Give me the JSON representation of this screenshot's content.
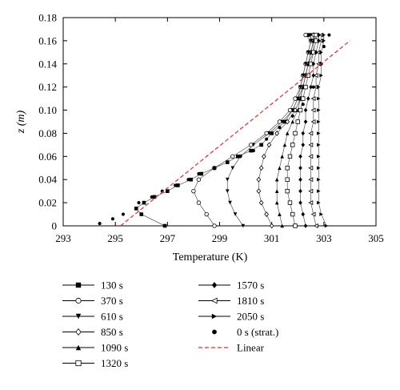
{
  "chart_data": {
    "type": "line",
    "xlabel": "Temperature (K)",
    "ylabel": "z (m)",
    "xlim": [
      293,
      305
    ],
    "ylim": [
      0,
      0.18
    ],
    "x_ticks": [
      "293",
      "295",
      "297",
      "299",
      "301",
      "303",
      "305"
    ],
    "y_ticks": [
      "0",
      "0.02",
      "0.04",
      "0.06",
      "0.08",
      "0.10",
      "0.12",
      "0.14",
      "0.16",
      "0.18"
    ],
    "grid": false,
    "legend_position": "bottom",
    "series": [
      {
        "name": "130 s",
        "marker": "square-filled",
        "points": [
          [
            296.9,
            0.0
          ],
          [
            296.0,
            0.01
          ],
          [
            295.8,
            0.015
          ],
          [
            296.1,
            0.02
          ],
          [
            296.5,
            0.025
          ],
          [
            297.0,
            0.03
          ],
          [
            297.4,
            0.035
          ],
          [
            297.9,
            0.04
          ],
          [
            298.3,
            0.045
          ],
          [
            298.8,
            0.05
          ],
          [
            299.3,
            0.055
          ],
          [
            299.7,
            0.06
          ],
          [
            300.2,
            0.065
          ],
          [
            300.6,
            0.07
          ],
          [
            301.0,
            0.08
          ],
          [
            301.5,
            0.09
          ],
          [
            301.8,
            0.1
          ],
          [
            302.0,
            0.11
          ],
          [
            302.2,
            0.12
          ],
          [
            302.3,
            0.13
          ],
          [
            302.4,
            0.14
          ],
          [
            302.6,
            0.15
          ],
          [
            302.6,
            0.16
          ],
          [
            302.4,
            0.165
          ]
        ]
      },
      {
        "name": "370 s",
        "marker": "circle-open",
        "points": [
          [
            298.8,
            0.0
          ],
          [
            298.5,
            0.01
          ],
          [
            298.2,
            0.02
          ],
          [
            298.0,
            0.03
          ],
          [
            298.2,
            0.04
          ],
          [
            298.8,
            0.05
          ],
          [
            299.5,
            0.06
          ],
          [
            300.2,
            0.07
          ],
          [
            300.8,
            0.08
          ],
          [
            301.3,
            0.09
          ],
          [
            301.7,
            0.1
          ],
          [
            301.9,
            0.11
          ],
          [
            302.1,
            0.12
          ],
          [
            302.2,
            0.13
          ],
          [
            302.3,
            0.14
          ],
          [
            302.4,
            0.15
          ],
          [
            302.5,
            0.16
          ],
          [
            302.3,
            0.165
          ]
        ]
      },
      {
        "name": "610 s",
        "marker": "triangle-down-filled",
        "points": [
          [
            299.9,
            0.0
          ],
          [
            299.6,
            0.01
          ],
          [
            299.4,
            0.02
          ],
          [
            299.3,
            0.03
          ],
          [
            299.3,
            0.04
          ],
          [
            299.5,
            0.05
          ],
          [
            299.8,
            0.06
          ],
          [
            300.3,
            0.07
          ],
          [
            300.9,
            0.08
          ],
          [
            301.4,
            0.09
          ],
          [
            301.8,
            0.1
          ],
          [
            302.0,
            0.11
          ],
          [
            302.1,
            0.12
          ],
          [
            302.2,
            0.13
          ],
          [
            302.3,
            0.14
          ],
          [
            302.4,
            0.15
          ],
          [
            302.5,
            0.16
          ],
          [
            302.5,
            0.165
          ]
        ]
      },
      {
        "name": "850 s",
        "marker": "diamond-open",
        "points": [
          [
            301.0,
            0.0
          ],
          [
            300.8,
            0.01
          ],
          [
            300.6,
            0.02
          ],
          [
            300.5,
            0.03
          ],
          [
            300.5,
            0.04
          ],
          [
            300.6,
            0.05
          ],
          [
            300.7,
            0.06
          ],
          [
            300.9,
            0.07
          ],
          [
            301.2,
            0.08
          ],
          [
            301.6,
            0.09
          ],
          [
            301.9,
            0.1
          ],
          [
            302.1,
            0.11
          ],
          [
            302.2,
            0.12
          ],
          [
            302.3,
            0.13
          ],
          [
            302.4,
            0.14
          ],
          [
            302.5,
            0.15
          ],
          [
            302.6,
            0.16
          ],
          [
            302.6,
            0.165
          ]
        ]
      },
      {
        "name": "1090 s",
        "marker": "triangle-up-filled",
        "points": [
          [
            301.4,
            0.0
          ],
          [
            301.3,
            0.01
          ],
          [
            301.2,
            0.02
          ],
          [
            301.2,
            0.03
          ],
          [
            301.2,
            0.04
          ],
          [
            301.3,
            0.05
          ],
          [
            301.4,
            0.06
          ],
          [
            301.5,
            0.07
          ],
          [
            301.6,
            0.08
          ],
          [
            301.8,
            0.09
          ],
          [
            302.0,
            0.1
          ],
          [
            302.1,
            0.11
          ],
          [
            302.2,
            0.12
          ],
          [
            302.3,
            0.13
          ],
          [
            302.4,
            0.14
          ],
          [
            302.5,
            0.15
          ],
          [
            302.6,
            0.16
          ],
          [
            302.7,
            0.165
          ]
        ]
      },
      {
        "name": "1320 s",
        "marker": "square-open",
        "points": [
          [
            301.9,
            0.0
          ],
          [
            301.8,
            0.01
          ],
          [
            301.7,
            0.02
          ],
          [
            301.6,
            0.03
          ],
          [
            301.6,
            0.04
          ],
          [
            301.6,
            0.05
          ],
          [
            301.7,
            0.06
          ],
          [
            301.8,
            0.07
          ],
          [
            301.9,
            0.08
          ],
          [
            302.0,
            0.09
          ],
          [
            302.1,
            0.1
          ],
          [
            302.2,
            0.11
          ],
          [
            302.3,
            0.12
          ],
          [
            302.4,
            0.13
          ],
          [
            302.5,
            0.14
          ],
          [
            302.6,
            0.15
          ],
          [
            302.7,
            0.16
          ],
          [
            302.7,
            0.165
          ]
        ]
      },
      {
        "name": "1570 s",
        "marker": "diamond-filled",
        "points": [
          [
            302.3,
            0.0
          ],
          [
            302.2,
            0.01
          ],
          [
            302.1,
            0.02
          ],
          [
            302.1,
            0.03
          ],
          [
            302.1,
            0.04
          ],
          [
            302.1,
            0.05
          ],
          [
            302.1,
            0.06
          ],
          [
            302.2,
            0.07
          ],
          [
            302.2,
            0.08
          ],
          [
            302.3,
            0.09
          ],
          [
            302.3,
            0.1
          ],
          [
            302.4,
            0.11
          ],
          [
            302.5,
            0.12
          ],
          [
            302.6,
            0.13
          ],
          [
            302.6,
            0.14
          ],
          [
            302.7,
            0.15
          ],
          [
            302.8,
            0.16
          ],
          [
            302.8,
            0.165
          ]
        ]
      },
      {
        "name": "1810 s",
        "marker": "triangle-left-open",
        "points": [
          [
            302.7,
            0.0
          ],
          [
            302.6,
            0.01
          ],
          [
            302.5,
            0.02
          ],
          [
            302.5,
            0.03
          ],
          [
            302.5,
            0.04
          ],
          [
            302.5,
            0.05
          ],
          [
            302.5,
            0.06
          ],
          [
            302.5,
            0.07
          ],
          [
            302.5,
            0.08
          ],
          [
            302.6,
            0.09
          ],
          [
            302.6,
            0.1
          ],
          [
            302.6,
            0.11
          ],
          [
            302.7,
            0.12
          ],
          [
            302.7,
            0.13
          ],
          [
            302.8,
            0.14
          ],
          [
            302.8,
            0.15
          ],
          [
            302.9,
            0.16
          ],
          [
            302.9,
            0.165
          ]
        ]
      },
      {
        "name": "2050 s",
        "marker": "triangle-right-filled",
        "points": [
          [
            303.1,
            0.0
          ],
          [
            302.9,
            0.01
          ],
          [
            302.8,
            0.02
          ],
          [
            302.8,
            0.03
          ],
          [
            302.8,
            0.04
          ],
          [
            302.8,
            0.05
          ],
          [
            302.8,
            0.06
          ],
          [
            302.8,
            0.07
          ],
          [
            302.8,
            0.08
          ],
          [
            302.8,
            0.09
          ],
          [
            302.8,
            0.1
          ],
          [
            302.8,
            0.11
          ],
          [
            302.8,
            0.12
          ],
          [
            302.9,
            0.13
          ],
          [
            302.9,
            0.14
          ],
          [
            302.9,
            0.15
          ],
          [
            303.0,
            0.16
          ],
          [
            303.0,
            0.165
          ]
        ]
      },
      {
        "name": "0 s (strat.)",
        "marker": "dot",
        "points": [
          [
            294.4,
            0.002
          ],
          [
            294.9,
            0.006
          ],
          [
            295.3,
            0.01
          ],
          [
            295.9,
            0.02
          ],
          [
            296.4,
            0.025
          ],
          [
            296.8,
            0.03
          ],
          [
            297.3,
            0.035
          ],
          [
            297.8,
            0.04
          ],
          [
            298.2,
            0.045
          ],
          [
            298.8,
            0.05
          ],
          [
            299.3,
            0.055
          ],
          [
            299.8,
            0.06
          ],
          [
            300.3,
            0.065
          ],
          [
            300.8,
            0.075
          ],
          [
            301.3,
            0.085
          ],
          [
            301.8,
            0.095
          ],
          [
            302.2,
            0.105
          ],
          [
            302.6,
            0.12
          ],
          [
            302.9,
            0.14
          ],
          [
            303.0,
            0.155
          ],
          [
            303.2,
            0.165
          ]
        ]
      },
      {
        "name": "Linear",
        "style": "dashed",
        "color": "#e0302e",
        "points": [
          [
            295.2,
            0.0
          ],
          [
            304.0,
            0.16
          ]
        ]
      }
    ]
  }
}
